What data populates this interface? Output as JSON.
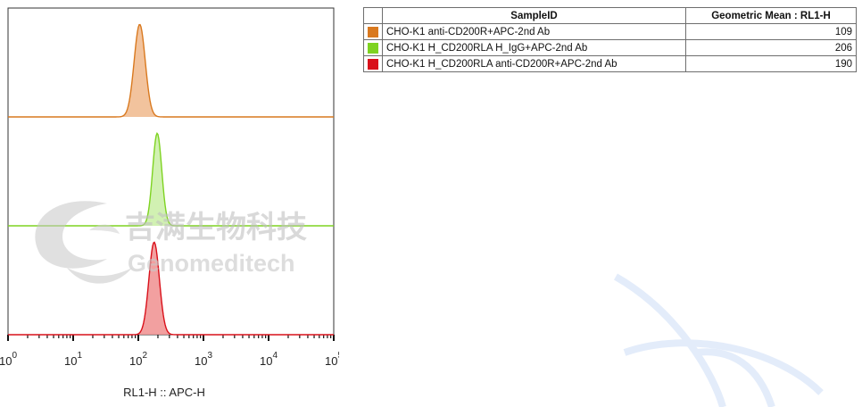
{
  "chart_data": {
    "type": "area",
    "xlabel": "RL1-H :: APC-H",
    "xscale": "log",
    "xlim": [
      1,
      100000
    ],
    "x_ticks": [
      {
        "base": "10",
        "exp": "0"
      },
      {
        "base": "10",
        "exp": "1"
      },
      {
        "base": "10",
        "exp": "2"
      },
      {
        "base": "10",
        "exp": "3"
      },
      {
        "base": "10",
        "exp": "4"
      },
      {
        "base": "10",
        "exp": "5"
      }
    ],
    "layout": "offset histograms, stacked vertically",
    "series": [
      {
        "color": "#d9791f",
        "fill": "#f0b98c",
        "mode": 105,
        "spread": 0.085
      },
      {
        "color": "#7ed321",
        "fill": "#c9efa4",
        "mode": 195,
        "spread": 0.07
      },
      {
        "color": "#d9101a",
        "fill": "#f08f8f",
        "mode": 175,
        "spread": 0.08
      }
    ]
  },
  "table": {
    "headers": {
      "sample_id": "SampleID",
      "geo_mean": "Geometric Mean : RL1-H"
    },
    "rows": [
      {
        "color": "#d9791f",
        "name": "CHO-K1 anti-CD200R+APC-2nd Ab",
        "value": "109"
      },
      {
        "color": "#7ed321",
        "name": "CHO-K1 H_CD200RLA H_IgG+APC-2nd Ab",
        "value": "206"
      },
      {
        "color": "#d9101a",
        "name": "CHO-K1 H_CD200RLA anti-CD200R+APC-2nd Ab",
        "value": "190"
      }
    ]
  },
  "watermark": {
    "chinese": "吉满生物科技",
    "english": "Genomeditech"
  }
}
